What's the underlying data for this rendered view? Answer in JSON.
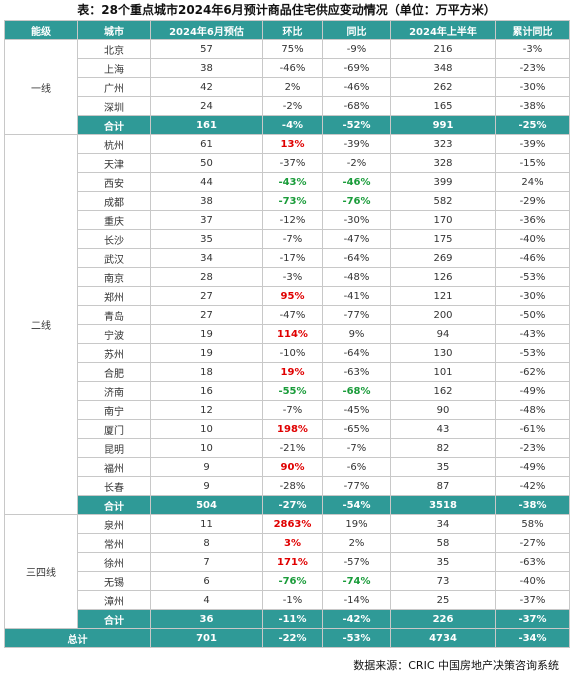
{
  "title": "表：28个重点城市2024年6月预计商品住宅供应变动情况（单位：万平方米）",
  "header": [
    "能级",
    "城市",
    "2024年6月预估",
    "环比",
    "同比",
    "2024年上半年",
    "累计同比"
  ],
  "groups": [
    {
      "level": "一线",
      "rows": [
        [
          "北京",
          "57",
          "75%",
          "-9%",
          "216",
          "-3%"
        ],
        [
          "上海",
          "38",
          "-46%",
          "-69%",
          "348",
          "-23%"
        ],
        [
          "广州",
          "42",
          "2%",
          "-46%",
          "262",
          "-30%"
        ],
        [
          "深圳",
          "24",
          "-2%",
          "-68%",
          "165",
          "-38%"
        ]
      ],
      "subtotal": [
        "合计",
        "161",
        "-4%",
        "-52%",
        "991",
        "-25%"
      ]
    },
    {
      "level": "二线",
      "rows": [
        [
          "杭州",
          "61",
          {
            "text": "13%",
            "color": "#e00000"
          },
          "-39%",
          "323",
          "-39%"
        ],
        [
          "天津",
          "50",
          "-37%",
          "-2%",
          "328",
          "-15%"
        ],
        [
          "西安",
          "44",
          {
            "text": "-43%",
            "color": "#1a9c3a"
          },
          {
            "text": "-46%",
            "color": "#1a9c3a"
          },
          "399",
          "24%"
        ],
        [
          "成都",
          "38",
          {
            "text": "-73%",
            "color": "#1a9c3a"
          },
          {
            "text": "-76%",
            "color": "#1a9c3a"
          },
          "582",
          "-29%"
        ],
        [
          "重庆",
          "37",
          "-12%",
          "-30%",
          "170",
          "-36%"
        ],
        [
          "长沙",
          "35",
          "-7%",
          "-47%",
          "175",
          "-40%"
        ],
        [
          "武汉",
          "34",
          "-17%",
          "-64%",
          "269",
          "-46%"
        ],
        [
          "南京",
          "28",
          "-3%",
          "-48%",
          "126",
          "-53%"
        ],
        [
          "郑州",
          "27",
          {
            "text": "95%",
            "color": "#e00000"
          },
          "-41%",
          "121",
          "-30%"
        ],
        [
          "青岛",
          "27",
          "-47%",
          "-77%",
          "200",
          "-50%"
        ],
        [
          "宁波",
          "19",
          {
            "text": "114%",
            "color": "#e00000"
          },
          "9%",
          "94",
          "-43%"
        ],
        [
          "苏州",
          "19",
          "-10%",
          "-64%",
          "130",
          "-53%"
        ],
        [
          "合肥",
          "18",
          {
            "text": "19%",
            "color": "#e00000"
          },
          "-63%",
          "101",
          "-62%"
        ],
        [
          "济南",
          "16",
          {
            "text": "-55%",
            "color": "#1a9c3a"
          },
          {
            "text": "-68%",
            "color": "#1a9c3a"
          },
          "162",
          "-49%"
        ],
        [
          "南宁",
          "12",
          "-7%",
          "-45%",
          "90",
          "-48%"
        ],
        [
          "厦门",
          "10",
          {
            "text": "198%",
            "color": "#e00000"
          },
          "-65%",
          "43",
          "-61%"
        ],
        [
          "昆明",
          "10",
          "-21%",
          "-7%",
          "82",
          "-23%"
        ],
        [
          "福州",
          "9",
          {
            "text": "90%",
            "color": "#e00000"
          },
          "-6%",
          "35",
          "-49%"
        ],
        [
          "长春",
          "9",
          "-28%",
          "-77%",
          "87",
          "-42%"
        ]
      ],
      "subtotal": [
        "合计",
        "504",
        "-27%",
        "-54%",
        "3518",
        "-38%"
      ]
    },
    {
      "level": "三四线",
      "rows": [
        [
          "泉州",
          "11",
          {
            "text": "2863%",
            "color": "#e00000"
          },
          "19%",
          "34",
          "58%"
        ],
        [
          "常州",
          "8",
          {
            "text": "3%",
            "color": "#e00000"
          },
          "2%",
          "58",
          "-27%"
        ],
        [
          "徐州",
          "7",
          {
            "text": "171%",
            "color": "#e00000"
          },
          "-57%",
          "35",
          "-63%"
        ],
        [
          "无锡",
          "6",
          {
            "text": "-76%",
            "color": "#1a9c3a"
          },
          {
            "text": "-74%",
            "color": "#1a9c3a"
          },
          "73",
          "-40%"
        ],
        [
          "漳州",
          "4",
          "-1%",
          "-14%",
          "25",
          "-37%"
        ]
      ],
      "subtotal": [
        "合计",
        "36",
        "-11%",
        "-42%",
        "226",
        "-37%"
      ]
    }
  ],
  "total": [
    "总计",
    "701",
    "-22%",
    "-53%",
    "4734",
    "-34%"
  ],
  "source": "数据来源：CRIC 中国房地产决策咨询系统"
}
